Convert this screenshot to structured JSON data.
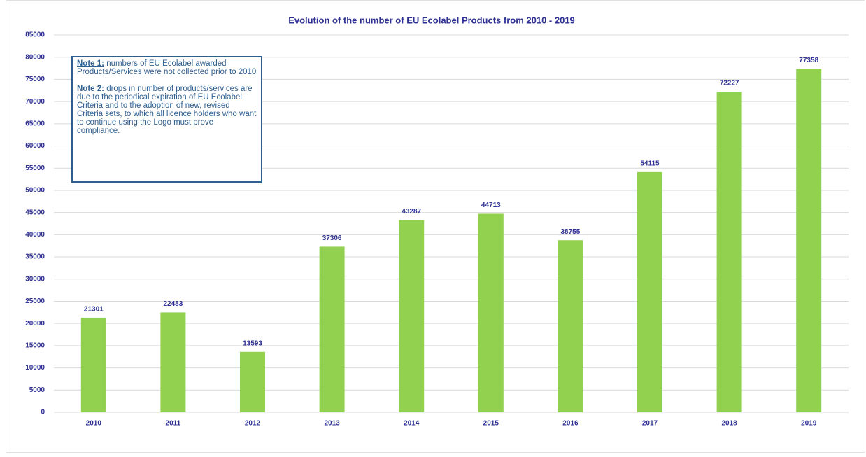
{
  "chart_data": {
    "type": "bar",
    "title": "Evolution of the number of EU Ecolabel Products from 2010 - 2019",
    "categories": [
      "2010",
      "2011",
      "2012",
      "2013",
      "2014",
      "2015",
      "2016",
      "2017",
      "2018",
      "2019"
    ],
    "values": [
      21301,
      22483,
      13593,
      37306,
      43287,
      44713,
      38755,
      54115,
      72227,
      77358
    ],
    "color": "#92d050",
    "ylim": [
      0,
      85000
    ],
    "yticks": [
      0,
      5000,
      10000,
      15000,
      20000,
      25000,
      30000,
      35000,
      40000,
      45000,
      50000,
      55000,
      60000,
      65000,
      70000,
      75000,
      80000,
      85000
    ],
    "grid": true,
    "notes": [
      {
        "label": "Note 1:",
        "text": "numbers of EU Ecolabel awarded Products/Services were not collected prior to 2010"
      },
      {
        "label": "Note 2:",
        "text": "drops in number of products/services  are due to the periodical expiration of EU Ecolabel Criteria and to the adoption of new, revised Criteria sets, to which all licence holders who want to continue using the Logo must prove compliance."
      }
    ]
  }
}
